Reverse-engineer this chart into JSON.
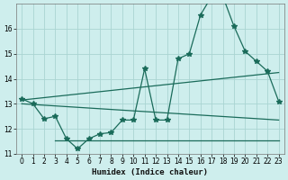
{
  "xlabel": "Humidex (Indice chaleur)",
  "background_color": "#ceeeed",
  "grid_color": "#aad4d2",
  "line_color": "#1a6b5a",
  "x_values": [
    0,
    1,
    2,
    3,
    4,
    5,
    6,
    7,
    8,
    9,
    10,
    11,
    12,
    13,
    14,
    15,
    16,
    17,
    18,
    19,
    20,
    21,
    22,
    23
  ],
  "main_line": [
    13.2,
    13.0,
    12.4,
    12.5,
    11.6,
    11.2,
    11.6,
    11.8,
    11.85,
    12.35,
    12.35,
    14.4,
    12.35,
    12.35,
    14.8,
    15.0,
    16.55,
    17.3,
    17.3,
    16.1,
    15.1,
    14.7,
    14.3,
    13.1
  ],
  "reg_line1_x": [
    0,
    23
  ],
  "reg_line1_y": [
    13.15,
    14.25
  ],
  "reg_line2_x": [
    0,
    23
  ],
  "reg_line2_y": [
    13.0,
    12.35
  ],
  "flat_line_x": [
    3,
    23
  ],
  "flat_line_y": [
    11.55,
    11.55
  ],
  "ylim": [
    11.0,
    17.0
  ],
  "yticks": [
    11,
    12,
    13,
    14,
    15,
    16
  ],
  "xticks": [
    0,
    1,
    2,
    3,
    4,
    5,
    6,
    7,
    8,
    9,
    10,
    11,
    12,
    13,
    14,
    15,
    16,
    17,
    18,
    19,
    20,
    21,
    22,
    23
  ],
  "figsize": [
    3.2,
    2.0
  ],
  "dpi": 100
}
